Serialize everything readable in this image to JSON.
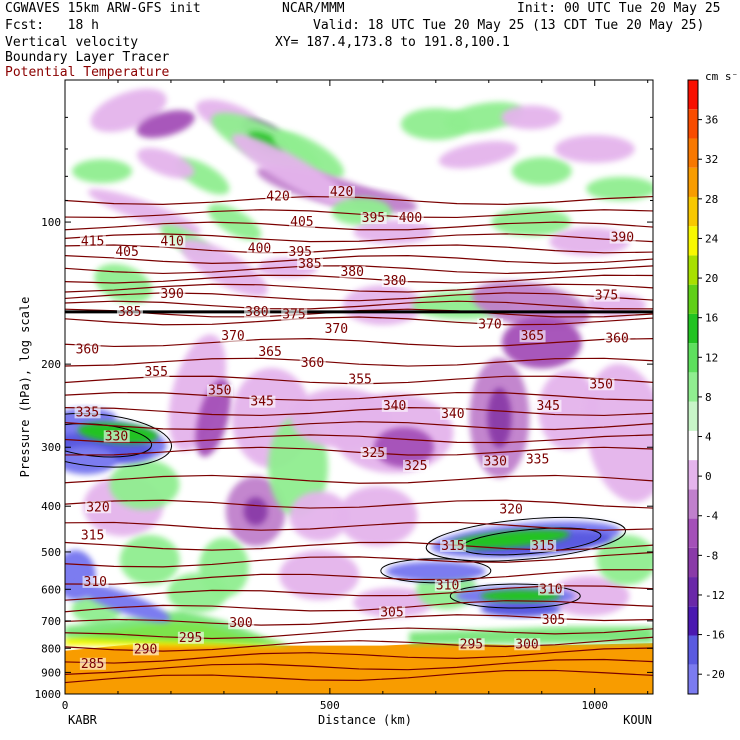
{
  "header": {
    "line1_left": "CGWAVES 15km ARW-GFS init",
    "line1_mid": "NCAR/MMM",
    "line1_right": "Init: 00 UTC Tue 20 May 25",
    "fcst": "Fcst:   18 h",
    "valid": "Valid: 18 UTC Tue 20 May 25 (13 CDT Tue 20 May 25)",
    "field1": "Vertical velocity",
    "xy": "XY= 187.4,173.8 to 191.8,100.1",
    "field2": "Boundary Layer Tracer",
    "field3": "Potential Temperature"
  },
  "colors": {
    "theta": "#7a0000",
    "tracer": "#000000",
    "colorbar": [
      "#7b7bf0",
      "#5a5ae0",
      "#4a18b0",
      "#6a28a8",
      "#8a3aa8",
      "#a450b8",
      "#c080cc",
      "#e4b4ec",
      "#ffffff",
      "#c8f5c8",
      "#90ee90",
      "#5ee05e",
      "#22c322",
      "#60d018",
      "#a8e000",
      "#f8f800",
      "#f8c800",
      "#f89c00",
      "#f87800",
      "#f84c00",
      "#f81000"
    ]
  },
  "chart_data": {
    "type": "heatmap",
    "ylabel": "Pressure (hPa), log scale",
    "xlabel": "Distance (km)",
    "x_start_label": "KABR",
    "x_end_label": "KOUN",
    "xlim": [
      0,
      1110
    ],
    "ylim_hPa": [
      1000,
      50
    ],
    "x_ticks": [
      0,
      500,
      1000
    ],
    "y_ticks": [
      100,
      200,
      300,
      400,
      500,
      600,
      700,
      800,
      900,
      1000
    ],
    "colorbar": {
      "unit": "cm s⁻¹",
      "ticks": [
        36,
        32,
        28,
        24,
        20,
        16,
        12,
        8,
        4,
        0,
        -4,
        -8,
        -12,
        -16,
        -20
      ],
      "bounds": [
        -22,
        40
      ]
    },
    "tropopause_hPa": 155,
    "theta_labels": [
      {
        "x": 380,
        "p": 90,
        "v": "420"
      },
      {
        "x": 500,
        "p": 88,
        "v": "420"
      },
      {
        "x": 30,
        "p": 112,
        "v": "415"
      },
      {
        "x": 425,
        "p": 102,
        "v": "405"
      },
      {
        "x": 95,
        "p": 118,
        "v": "405"
      },
      {
        "x": 560,
        "p": 100,
        "v": "395"
      },
      {
        "x": 630,
        "p": 100,
        "v": "400"
      },
      {
        "x": 1030,
        "p": 110,
        "v": "390"
      },
      {
        "x": 180,
        "p": 112,
        "v": "410"
      },
      {
        "x": 345,
        "p": 116,
        "v": "400"
      },
      {
        "x": 422,
        "p": 118,
        "v": "395"
      },
      {
        "x": 440,
        "p": 125,
        "v": "385"
      },
      {
        "x": 520,
        "p": 130,
        "v": "380"
      },
      {
        "x": 600,
        "p": 136,
        "v": "380"
      },
      {
        "x": 180,
        "p": 145,
        "v": "390"
      },
      {
        "x": 1000,
        "p": 146,
        "v": "375"
      },
      {
        "x": 100,
        "p": 158,
        "v": "385"
      },
      {
        "x": 340,
        "p": 158,
        "v": "380"
      },
      {
        "x": 410,
        "p": 160,
        "v": "375"
      },
      {
        "x": 780,
        "p": 168,
        "v": "370"
      },
      {
        "x": 295,
        "p": 178,
        "v": "370"
      },
      {
        "x": 490,
        "p": 172,
        "v": "370"
      },
      {
        "x": 860,
        "p": 178,
        "v": "365"
      },
      {
        "x": 1020,
        "p": 180,
        "v": "360"
      },
      {
        "x": 20,
        "p": 190,
        "v": "360"
      },
      {
        "x": 365,
        "p": 192,
        "v": "365"
      },
      {
        "x": 445,
        "p": 203,
        "v": "360"
      },
      {
        "x": 150,
        "p": 212,
        "v": "355"
      },
      {
        "x": 535,
        "p": 220,
        "v": "355"
      },
      {
        "x": 270,
        "p": 232,
        "v": "350"
      },
      {
        "x": 350,
        "p": 245,
        "v": "345"
      },
      {
        "x": 990,
        "p": 225,
        "v": "350"
      },
      {
        "x": 600,
        "p": 250,
        "v": "340"
      },
      {
        "x": 710,
        "p": 260,
        "v": "340"
      },
      {
        "x": 890,
        "p": 250,
        "v": "345"
      },
      {
        "x": 20,
        "p": 258,
        "v": "335"
      },
      {
        "x": 75,
        "p": 290,
        "v": "330"
      },
      {
        "x": 560,
        "p": 315,
        "v": "325"
      },
      {
        "x": 640,
        "p": 335,
        "v": "325"
      },
      {
        "x": 790,
        "p": 328,
        "v": "330"
      },
      {
        "x": 870,
        "p": 325,
        "v": "335"
      },
      {
        "x": 820,
        "p": 415,
        "v": "320"
      },
      {
        "x": 40,
        "p": 410,
        "v": "320"
      },
      {
        "x": 30,
        "p": 470,
        "v": "315"
      },
      {
        "x": 710,
        "p": 495,
        "v": "315"
      },
      {
        "x": 880,
        "p": 495,
        "v": "315"
      },
      {
        "x": 35,
        "p": 590,
        "v": "310"
      },
      {
        "x": 700,
        "p": 600,
        "v": "310"
      },
      {
        "x": 895,
        "p": 612,
        "v": "310"
      },
      {
        "x": 595,
        "p": 685,
        "v": "305"
      },
      {
        "x": 900,
        "p": 710,
        "v": "305"
      },
      {
        "x": 310,
        "p": 722,
        "v": "300"
      },
      {
        "x": 215,
        "p": 775,
        "v": "295"
      },
      {
        "x": 745,
        "p": 800,
        "v": "295"
      },
      {
        "x": 850,
        "p": 800,
        "v": "300"
      },
      {
        "x": 130,
        "p": 820,
        "v": "290"
      },
      {
        "x": 30,
        "p": 880,
        "v": "285"
      }
    ]
  }
}
